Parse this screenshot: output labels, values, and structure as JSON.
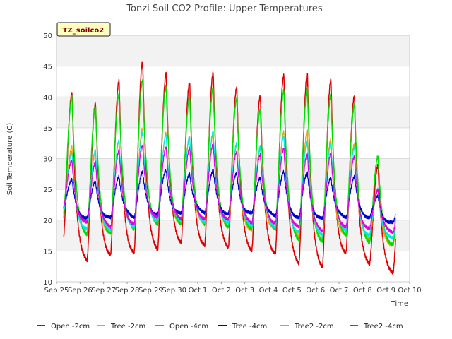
{
  "chart_data": {
    "type": "line",
    "title": "Tonzi Soil CO2 Profile: Upper Temperatures",
    "xlabel": "Time",
    "ylabel": "Soil Temperature (C)",
    "site_label": "TZ_soilco2",
    "ylim": [
      10,
      50
    ],
    "yticks": [
      10,
      15,
      20,
      25,
      30,
      35,
      40,
      45,
      50
    ],
    "xlim": [
      0,
      15
    ],
    "xticks": [
      "Sep 25",
      "Sep 26",
      "Sep 27",
      "Sep 28",
      "Sep 29",
      "Sep 30",
      "Oct 1",
      "Oct 2",
      "Oct 3",
      "Oct 4",
      "Oct 5",
      "Oct 6",
      "Oct 7",
      "Oct 8",
      "Oct 9",
      "Oct 10"
    ],
    "x_note": "x positions expressed as days since Sep 25",
    "data_range": [
      0.3,
      14.4
    ],
    "grid": true,
    "legend_position": "bottom",
    "series": [
      {
        "name": "Open -2cm",
        "color": "#dd0000",
        "width": 1.5,
        "max": [
          40.8,
          39.0,
          42.5,
          45.8,
          43.8,
          42.2,
          44.0,
          41.6,
          40.0,
          43.6,
          44.0,
          42.6,
          40.2,
          29.0
        ],
        "min": [
          17.0,
          13.5,
          14.5,
          14.6,
          15.2,
          16.5,
          15.8,
          15.5,
          15.2,
          14.5,
          12.9,
          12.6,
          14.6,
          12.8,
          11.6
        ]
      },
      {
        "name": "Tree -2cm",
        "color": "#f0a000",
        "width": 1.2,
        "max": [
          32.0,
          31.0,
          32.8,
          35.0,
          34.0,
          33.5,
          34.0,
          32.0,
          31.5,
          34.5,
          34.5,
          33.0,
          32.5,
          25.0
        ],
        "min": [
          21.0,
          18.0,
          18.0,
          19.0,
          19.5,
          19.5,
          19.5,
          19.0,
          18.5,
          18.5,
          17.5,
          17.0,
          17.5,
          17.0,
          16.0
        ]
      },
      {
        "name": "Open -4cm",
        "color": "#00dd00",
        "width": 1.5,
        "max": [
          40.0,
          38.3,
          40.5,
          42.8,
          41.5,
          40.0,
          41.6,
          39.5,
          38.0,
          41.2,
          41.4,
          40.4,
          38.8,
          30.2
        ],
        "min": [
          20.5,
          17.8,
          17.8,
          18.5,
          19.5,
          19.3,
          19.3,
          19.0,
          18.5,
          18.5,
          17.0,
          16.5,
          17.5,
          16.5,
          16.0
        ]
      },
      {
        "name": "Tree -4cm",
        "color": "#0000cc",
        "width": 1.2,
        "max": [
          26.5,
          26.2,
          27.2,
          27.7,
          28.0,
          27.6,
          28.0,
          27.5,
          27.0,
          27.8,
          27.6,
          27.0,
          27.0,
          23.8
        ],
        "min": [
          22.2,
          20.4,
          20.3,
          20.6,
          21.0,
          21.0,
          21.3,
          21.1,
          21.0,
          20.8,
          20.5,
          20.2,
          20.5,
          20.5,
          19.5
        ]
      },
      {
        "name": "Tree2 -2cm",
        "color": "#00e8e8",
        "width": 1.2,
        "max": [
          30.8,
          31.4,
          33.0,
          34.0,
          34.0,
          33.5,
          34.2,
          32.5,
          32.0,
          33.5,
          33.0,
          32.5,
          31.6,
          25.0
        ],
        "min": [
          21.5,
          18.5,
          18.3,
          19.0,
          19.8,
          19.8,
          19.8,
          19.5,
          19.0,
          19.0,
          18.0,
          17.5,
          18.5,
          17.5,
          17.0
        ]
      },
      {
        "name": "Tree2 -4cm",
        "color": "#e000e0",
        "width": 1.2,
        "max": [
          29.6,
          29.5,
          31.2,
          32.0,
          32.0,
          31.6,
          32.2,
          31.2,
          30.6,
          31.5,
          31.0,
          30.8,
          30.2,
          25.0
        ],
        "min": [
          22.0,
          19.5,
          19.0,
          19.5,
          20.3,
          20.3,
          20.3,
          20.0,
          19.6,
          19.6,
          18.8,
          18.3,
          19.0,
          18.5,
          18.0
        ]
      }
    ]
  }
}
